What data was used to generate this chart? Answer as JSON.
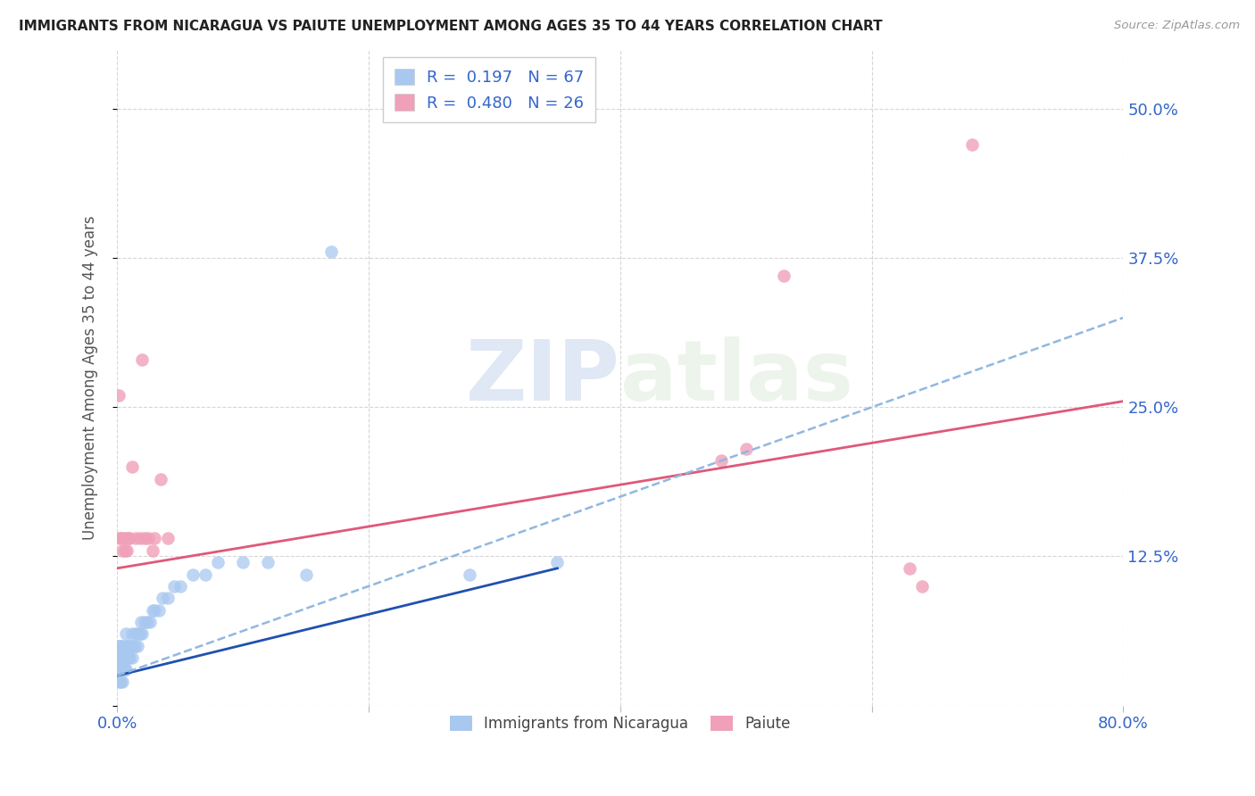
{
  "title": "IMMIGRANTS FROM NICARAGUA VS PAIUTE UNEMPLOYMENT AMONG AGES 35 TO 44 YEARS CORRELATION CHART",
  "source": "Source: ZipAtlas.com",
  "ylabel": "Unemployment Among Ages 35 to 44 years",
  "xlim": [
    0.0,
    0.8
  ],
  "ylim": [
    0.0,
    0.55
  ],
  "xticks": [
    0.0,
    0.2,
    0.4,
    0.6,
    0.8
  ],
  "xticklabels": [
    "0.0%",
    "",
    "",
    "",
    "80.0%"
  ],
  "yticks": [
    0.0,
    0.125,
    0.25,
    0.375,
    0.5
  ],
  "yticklabels": [
    "",
    "12.5%",
    "25.0%",
    "37.5%",
    "50.0%"
  ],
  "nicaragua_R": 0.197,
  "nicaragua_N": 67,
  "paiute_R": 0.48,
  "paiute_N": 26,
  "nicaragua_color": "#a8c8f0",
  "paiute_color": "#f0a0b8",
  "nicaragua_line_color": "#2050b0",
  "paiute_line_color": "#e05878",
  "dashed_line_color": "#90b8e0",
  "watermark_zip": "ZIP",
  "watermark_atlas": "atlas",
  "nicaragua_x": [
    0.001,
    0.001,
    0.001,
    0.001,
    0.001,
    0.002,
    0.002,
    0.002,
    0.002,
    0.002,
    0.002,
    0.003,
    0.003,
    0.003,
    0.003,
    0.003,
    0.004,
    0.004,
    0.004,
    0.004,
    0.004,
    0.005,
    0.005,
    0.005,
    0.005,
    0.006,
    0.006,
    0.006,
    0.007,
    0.007,
    0.007,
    0.008,
    0.008,
    0.009,
    0.009,
    0.01,
    0.01,
    0.011,
    0.012,
    0.012,
    0.013,
    0.014,
    0.015,
    0.016,
    0.017,
    0.018,
    0.019,
    0.02,
    0.022,
    0.024,
    0.026,
    0.028,
    0.03,
    0.033,
    0.036,
    0.04,
    0.045,
    0.05,
    0.06,
    0.07,
    0.08,
    0.1,
    0.12,
    0.15,
    0.17,
    0.28,
    0.35
  ],
  "nicaragua_y": [
    0.03,
    0.04,
    0.05,
    0.03,
    0.04,
    0.02,
    0.03,
    0.04,
    0.05,
    0.03,
    0.04,
    0.02,
    0.03,
    0.04,
    0.03,
    0.05,
    0.02,
    0.03,
    0.04,
    0.03,
    0.05,
    0.03,
    0.04,
    0.03,
    0.04,
    0.03,
    0.04,
    0.05,
    0.03,
    0.04,
    0.06,
    0.04,
    0.05,
    0.04,
    0.05,
    0.04,
    0.05,
    0.05,
    0.04,
    0.06,
    0.05,
    0.05,
    0.06,
    0.05,
    0.06,
    0.06,
    0.07,
    0.06,
    0.07,
    0.07,
    0.07,
    0.08,
    0.08,
    0.08,
    0.09,
    0.09,
    0.1,
    0.1,
    0.11,
    0.11,
    0.12,
    0.12,
    0.12,
    0.11,
    0.38,
    0.11,
    0.12
  ],
  "paiute_x": [
    0.001,
    0.002,
    0.003,
    0.004,
    0.005,
    0.006,
    0.007,
    0.008,
    0.009,
    0.01,
    0.012,
    0.015,
    0.018,
    0.02,
    0.022,
    0.025,
    0.028,
    0.03,
    0.035,
    0.04,
    0.48,
    0.5,
    0.53,
    0.63,
    0.64,
    0.68
  ],
  "paiute_y": [
    0.26,
    0.14,
    0.14,
    0.13,
    0.14,
    0.13,
    0.14,
    0.13,
    0.14,
    0.14,
    0.2,
    0.14,
    0.14,
    0.29,
    0.14,
    0.14,
    0.13,
    0.14,
    0.19,
    0.14,
    0.205,
    0.215,
    0.36,
    0.115,
    0.1,
    0.47
  ],
  "nic_line_x0": 0.0,
  "nic_line_x1": 0.35,
  "nic_line_y0": 0.025,
  "nic_line_y1": 0.115,
  "pai_line_x0": 0.0,
  "pai_line_x1": 0.8,
  "pai_line_y0": 0.115,
  "pai_line_y1": 0.255,
  "dash_line_x0": 0.0,
  "dash_line_x1": 0.8,
  "dash_line_y0": 0.025,
  "dash_line_y1": 0.325
}
